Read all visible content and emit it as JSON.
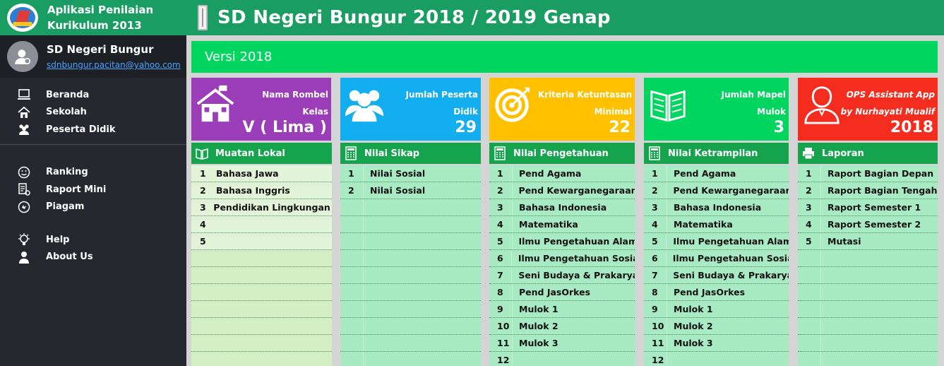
{
  "app": {
    "title_line1": "Aplikasi Penilaian",
    "title_line2": "Kurikulum 2013"
  },
  "profile": {
    "school": "SD Negeri Bungur",
    "email": "sdnbungur.pacitan@yahoo.com"
  },
  "menu": {
    "group1": [
      "Beranda",
      "Sekolah",
      "Peserta Didik"
    ],
    "group2": [
      "Ranking",
      "Raport  Mini",
      "Piagam"
    ],
    "group3": [
      "Help",
      "About Us"
    ]
  },
  "header": {
    "title": "SD Negeri Bungur 2018 / 2019 Genap",
    "version": "Versi 2018"
  },
  "cards": [
    {
      "label1": "Nama Rombel",
      "label2": "Kelas",
      "value": "V ( Lima )",
      "color": "#9b3db8",
      "icon": "school-icon"
    },
    {
      "label1": "Jumlah Peserta",
      "label2": "Didik",
      "value": "29",
      "color": "#12aef0",
      "icon": "users-icon"
    },
    {
      "label1": "Kriteria Ketuntasan",
      "label2": "Minimal",
      "value": "22",
      "color": "#ffc000",
      "icon": "target-icon"
    },
    {
      "label1": "Jumlah Mapel",
      "label2": "Mulok",
      "value": "3",
      "color": "#00d65f",
      "icon": "book-icon"
    },
    {
      "label1": "OPS Assistant App",
      "label2": "by Nurhayati Mualif",
      "value": "2018",
      "color": "#f52d1e",
      "icon": "person-icon"
    }
  ],
  "panels": {
    "lokal": {
      "title": "Muatan Lokal",
      "rows": [
        [
          "1",
          "Bahasa Jawa"
        ],
        [
          "2",
          "Bahasa Inggris"
        ],
        [
          "3",
          "Pendidikan Lingkungan Hidup"
        ],
        [
          "4",
          ""
        ],
        [
          "5",
          ""
        ],
        [
          "",
          ""
        ],
        [
          "",
          ""
        ],
        [
          "",
          ""
        ],
        [
          "",
          ""
        ],
        [
          "",
          ""
        ],
        [
          "",
          ""
        ],
        [
          "",
          ""
        ]
      ]
    },
    "sikap": {
      "title": "Nilai Sikap",
      "rows": [
        [
          "1",
          "Nilai Sosial"
        ],
        [
          "2",
          "Nilai Sosial"
        ],
        [
          "",
          ""
        ],
        [
          "",
          ""
        ],
        [
          "",
          ""
        ],
        [
          "",
          ""
        ],
        [
          "",
          ""
        ],
        [
          "",
          ""
        ],
        [
          "",
          ""
        ],
        [
          "",
          ""
        ],
        [
          "",
          ""
        ],
        [
          "",
          ""
        ]
      ]
    },
    "pengetahuan": {
      "title": "Nilai Pengetahuan",
      "rows": [
        [
          "1",
          "Pend Agama"
        ],
        [
          "2",
          "Pend Kewarganegaraan"
        ],
        [
          "3",
          "Bahasa Indonesia"
        ],
        [
          "4",
          "Matematika"
        ],
        [
          "5",
          "Ilmu Pengetahuan Alam"
        ],
        [
          "6",
          "Ilmu Pengetahuan Sosial"
        ],
        [
          "7",
          "Seni Budaya & Prakarya"
        ],
        [
          "8",
          "Pend JasOrkes"
        ],
        [
          "9",
          "Mulok 1"
        ],
        [
          "10",
          "Mulok 2"
        ],
        [
          "11",
          "Mulok 3"
        ],
        [
          "12",
          ""
        ]
      ]
    },
    "ketrampilan": {
      "title": "Nilai Ketrampilan",
      "rows": [
        [
          "1",
          "Pend Agama"
        ],
        [
          "2",
          "Pend Kewarganegaraan"
        ],
        [
          "3",
          "Bahasa Indonesia"
        ],
        [
          "4",
          "Matematika"
        ],
        [
          "5",
          "Ilmu Pengetahuan Alam"
        ],
        [
          "6",
          "Ilmu Pengetahuan Sosial"
        ],
        [
          "7",
          "Seni Budaya & Prakarya"
        ],
        [
          "8",
          "Pend JasOrkes"
        ],
        [
          "9",
          "Mulok 1"
        ],
        [
          "10",
          "Mulok 2"
        ],
        [
          "11",
          "Mulok 3"
        ],
        [
          "12",
          ""
        ]
      ]
    },
    "laporan": {
      "title": "Laporan",
      "rows": [
        [
          "1",
          "Raport Bagian Depan"
        ],
        [
          "2",
          "Raport Bagian Tengah"
        ],
        [
          "3",
          "Raport Semester 1"
        ],
        [
          "4",
          "Raport Semester 2"
        ],
        [
          "5",
          "Mutasi"
        ],
        [
          "",
          ""
        ],
        [
          "",
          ""
        ],
        [
          "",
          ""
        ],
        [
          "",
          ""
        ],
        [
          "",
          ""
        ],
        [
          "",
          ""
        ],
        [
          "",
          ""
        ]
      ]
    }
  }
}
